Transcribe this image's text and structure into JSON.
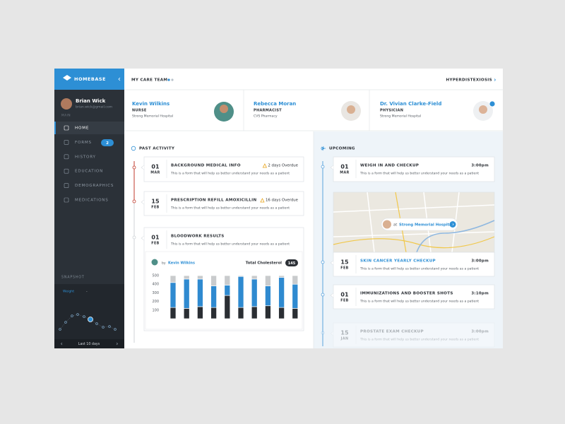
{
  "sidebar": {
    "brand": "HOMEBASE",
    "user": {
      "name": "Brian Wick",
      "email": "brian.wick@gmail.com"
    },
    "section": "MAIN",
    "nav": [
      {
        "label": "HOME"
      },
      {
        "label": "FORMS",
        "badge": 2
      },
      {
        "label": "HISTORY"
      },
      {
        "label": "EDUCATION"
      },
      {
        "label": "DEMOGRAPHICS"
      },
      {
        "label": "MEDICATIONS"
      }
    ],
    "snapshot": {
      "title": "SNAPSHOT",
      "metric": "Weight",
      "value": "-",
      "range": "Last 10 days"
    }
  },
  "header": {
    "title": "MY CARE TEAM",
    "condition": "HYPERDISTEXIOSIS"
  },
  "care_team": [
    {
      "name": "Kevin Wilkins",
      "role": "NURSE",
      "org": "Strong Memorial Hospital"
    },
    {
      "name": "Rebecca Moran",
      "role": "PHARMACIST",
      "org": "CVS Pharmacy"
    },
    {
      "name": "Dr. Vivian Clarke-Field",
      "role": "PHYSICIAN",
      "org": "Strong Memorial Hospital"
    }
  ],
  "past_activity": {
    "title": "PAST ACTIVITY",
    "items": [
      {
        "day": "01",
        "month": "MAR",
        "title": "BACKGROUND MEDICAL INFO",
        "status": "2 days Overdue",
        "description": "This is a form that will help us better understand your needs as a patient"
      },
      {
        "day": "15",
        "month": "FEB",
        "title": "PRESCRIPTION REFILL AMOXICILLIN",
        "status": "16 days Overdue",
        "description": "This is a form that will help us better understand your needs as a patient"
      },
      {
        "day": "01",
        "month": "FEB",
        "title": "BLOODWORK RESULTS",
        "description": "This is a form that will help us better understand your needs as a patient",
        "author_prefix": "by",
        "author": "Kevin Wilkins",
        "metric": "Total Cholesterol",
        "metric_value": 145,
        "chart": {
          "type": "bar",
          "stacked": true,
          "ylim": [
            0,
            500
          ],
          "yticks": [
            100,
            200,
            300,
            400,
            500
          ],
          "series": [
            {
              "color": "#2a2e33",
              "values": [
                130,
                120,
                140,
                130,
                270,
                130,
                140,
                150,
                130,
                120
              ]
            },
            {
              "color": "#2f8ad0",
              "values": [
                290,
                340,
                320,
                250,
                120,
                360,
                320,
                230,
                350,
                280
              ]
            },
            {
              "color": "#c9cbcd",
              "values": [
                80,
                40,
                40,
                120,
                110,
                10,
                40,
                120,
                20,
                100
              ]
            }
          ]
        }
      }
    ]
  },
  "upcoming": {
    "title": "UPCOMING",
    "map_label": {
      "prefix": "at",
      "place": "Strong Memorial Hospital"
    },
    "items": [
      {
        "day": "01",
        "month": "MAR",
        "title": "WEIGH IN AND CHECKUP",
        "time": "3:00pm",
        "description": "This is a form that will help us better understand your needs as a patient"
      },
      {
        "day": "15",
        "month": "FEB",
        "title": "SKIN CANCER YEARLY CHECKUP",
        "time": "3:00pm",
        "description": "This is a form that will help us better understand your needs as a patient"
      },
      {
        "day": "01",
        "month": "FEB",
        "title": "IMMUNIZATIONS AND BOOSTER SHOTS",
        "time": "3:10pm",
        "description": "This is a form that will help us better understand your needs as a patient"
      },
      {
        "day": "15",
        "month": "JAN",
        "title": "PROSTATE EXAM CHECKUP",
        "time": "3:00pm",
        "description": "This is a form that will help us better understand your needs as a patient"
      }
    ]
  }
}
